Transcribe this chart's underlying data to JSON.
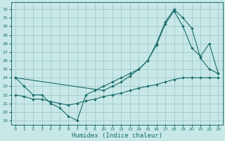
{
  "xlabel": "Humidex (Indice chaleur)",
  "bg_color": "#c8e8e8",
  "grid_color": "#a0c8c8",
  "line_color": "#1a6b6b",
  "xlim": [
    -0.5,
    23.5
  ],
  "ylim": [
    18.5,
    32.8
  ],
  "yticks": [
    19,
    20,
    21,
    22,
    23,
    24,
    25,
    26,
    27,
    28,
    29,
    30,
    31,
    32
  ],
  "xticks": [
    0,
    1,
    2,
    3,
    4,
    5,
    6,
    7,
    8,
    9,
    10,
    11,
    12,
    13,
    14,
    15,
    16,
    17,
    18,
    19,
    20,
    21,
    22,
    23
  ],
  "line1_x": [
    0,
    1,
    2,
    3,
    4,
    5,
    6,
    7,
    8,
    9,
    10,
    11,
    12,
    13,
    14,
    15,
    16,
    17,
    18,
    19,
    20,
    21,
    22,
    23
  ],
  "line1_y": [
    24,
    23,
    22,
    22,
    21,
    20.5,
    19.5,
    19.0,
    22.0,
    22.5,
    23.0,
    23.5,
    24.0,
    24.5,
    25.0,
    26.0,
    27.8,
    30.3,
    31.8,
    30.0,
    27.5,
    26.5,
    28.0,
    24.5
  ],
  "line2_x": [
    0,
    10,
    11,
    12,
    13,
    14,
    15,
    16,
    17,
    18,
    19,
    20,
    21,
    22,
    23
  ],
  "line2_y": [
    24,
    22.5,
    23.0,
    23.5,
    24.2,
    25.0,
    26.0,
    28.0,
    30.5,
    32.0,
    31.0,
    29.8,
    26.3,
    25.0,
    24.5
  ],
  "line3_x": [
    0,
    1,
    2,
    3,
    4,
    5,
    6,
    7,
    8,
    9,
    10,
    11,
    12,
    13,
    14,
    15,
    16,
    17,
    18,
    19,
    20,
    21,
    22,
    23
  ],
  "line3_y": [
    22,
    21.8,
    21.5,
    21.5,
    21.2,
    21.0,
    20.8,
    21.0,
    21.3,
    21.5,
    21.8,
    22.0,
    22.2,
    22.5,
    22.8,
    23.0,
    23.2,
    23.5,
    23.8,
    24.0,
    24.0,
    24.0,
    24.0,
    24.0
  ]
}
